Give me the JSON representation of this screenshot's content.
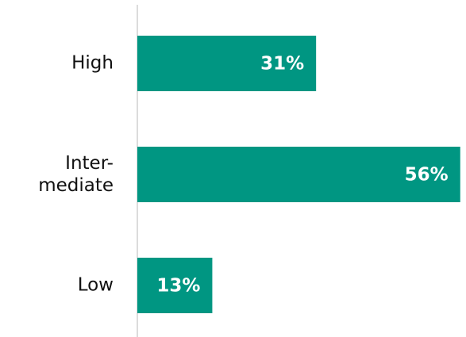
{
  "chart_data": {
    "type": "bar",
    "orientation": "horizontal",
    "categories": [
      "High",
      "Inter-\nmediate",
      "Low"
    ],
    "values": [
      31,
      56,
      13
    ],
    "value_labels": [
      "31%",
      "56%",
      "13%"
    ],
    "color": "#009682",
    "xlim": [
      0,
      57
    ]
  }
}
